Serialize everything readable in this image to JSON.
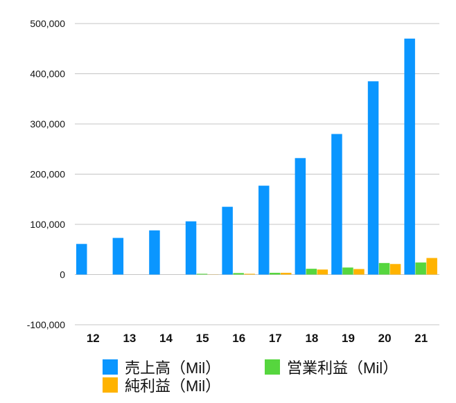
{
  "chart_data": {
    "type": "bar",
    "categories": [
      "12",
      "13",
      "14",
      "15",
      "16",
      "17",
      "18",
      "19",
      "20",
      "21"
    ],
    "series": [
      {
        "name": "売上高（Mil）",
        "color": "#0a96ff",
        "values": [
          61000,
          73000,
          88000,
          106000,
          135000,
          177000,
          232000,
          280000,
          385000,
          470000
        ]
      },
      {
        "name": "営業利益（Mil）",
        "color": "#56d63e",
        "values": [
          0,
          0,
          0,
          1500,
          3000,
          3500,
          11500,
          14000,
          23000,
          24000
        ]
      },
      {
        "name": "純利益（Mil）",
        "color": "#ffb300",
        "values": [
          0,
          0,
          0,
          300,
          1500,
          3500,
          10000,
          11000,
          21000,
          33000
        ]
      }
    ],
    "y_ticks": [
      "500,000",
      "400,000",
      "300,000",
      "200,000",
      "100,000",
      "0",
      "-100,000"
    ],
    "ylim": [
      -100000,
      500000
    ],
    "grid": true,
    "legend_position": "bottom"
  }
}
